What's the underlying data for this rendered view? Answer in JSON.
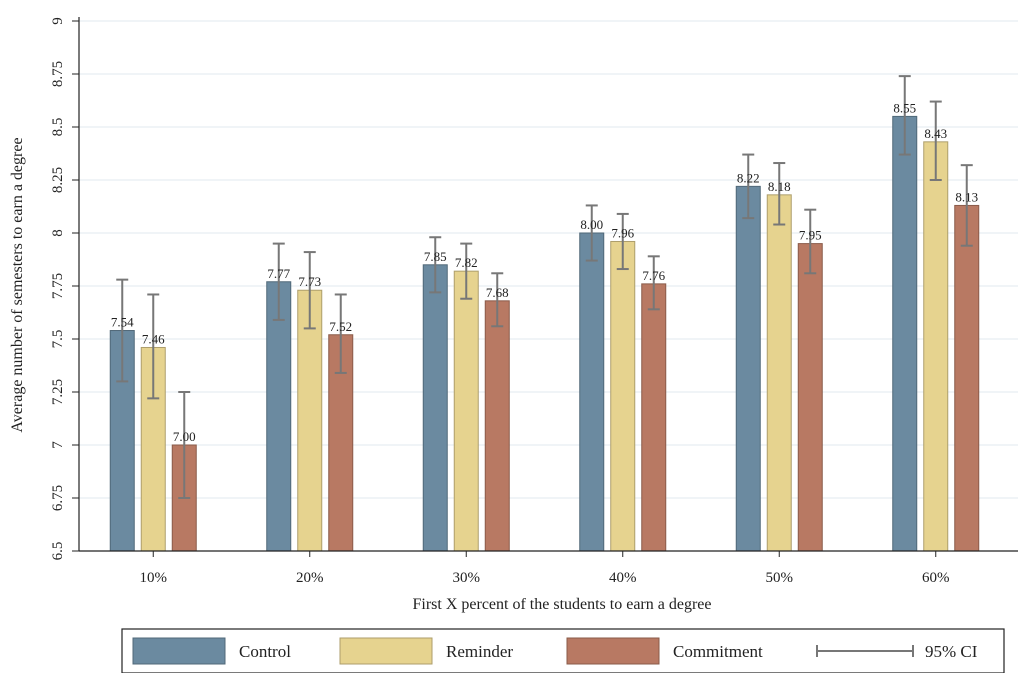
{
  "chart_data": {
    "type": "bar",
    "xlabel": "First X percent of the students to earn a degree",
    "ylabel": "Average number of semesters to earn a degree",
    "categories": [
      "10%",
      "20%",
      "30%",
      "40%",
      "50%",
      "60%"
    ],
    "ylim": [
      6.5,
      9
    ],
    "yticks": [
      "6.5",
      "6.75",
      "7",
      "7.25",
      "7.5",
      "7.75",
      "8",
      "8.25",
      "8.5",
      "8.75",
      "9"
    ],
    "grid": true,
    "series": [
      {
        "name": "Control",
        "color": "#6b8aa0",
        "values": [
          7.54,
          7.77,
          7.85,
          8.0,
          8.22,
          8.55
        ],
        "labels": [
          "7.54",
          "7.77",
          "7.85",
          "8.00",
          "8.22",
          "8.55"
        ],
        "ci_low": [
          7.3,
          7.59,
          7.72,
          7.87,
          8.07,
          8.37
        ],
        "ci_high": [
          7.78,
          7.95,
          7.98,
          8.13,
          8.37,
          8.74
        ]
      },
      {
        "name": "Reminder",
        "color": "#e6d38f",
        "values": [
          7.46,
          7.73,
          7.82,
          7.96,
          8.18,
          8.43
        ],
        "labels": [
          "7.46",
          "7.73",
          "7.82",
          "7.96",
          "8.18",
          "8.43"
        ],
        "ci_low": [
          7.22,
          7.55,
          7.69,
          7.83,
          8.04,
          8.25
        ],
        "ci_high": [
          7.71,
          7.91,
          7.95,
          8.09,
          8.33,
          8.62
        ]
      },
      {
        "name": "Commitment",
        "color": "#b87963",
        "values": [
          7.0,
          7.52,
          7.68,
          7.76,
          7.95,
          8.13
        ],
        "labels": [
          "7.00",
          "7.52",
          "7.68",
          "7.76",
          "7.95",
          "8.13"
        ],
        "ci_low": [
          6.75,
          7.34,
          7.56,
          7.64,
          7.81,
          7.94
        ],
        "ci_high": [
          7.25,
          7.71,
          7.81,
          7.89,
          8.11,
          8.32
        ]
      }
    ],
    "error_bar_label": "95% CI",
    "legend_position": "bottom"
  }
}
